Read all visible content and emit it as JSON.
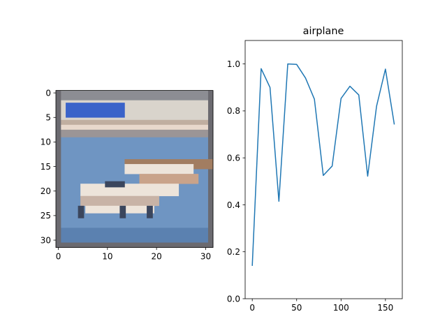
{
  "figure": {
    "background": "#ffffff"
  },
  "image_panel": {
    "title": "",
    "x_ticks": [
      "0",
      "10",
      "20",
      "30"
    ],
    "y_ticks": [
      "0",
      "5",
      "10",
      "15",
      "20",
      "25",
      "30"
    ],
    "xlim": [
      -0.5,
      31.5
    ],
    "ylim": [
      31.5,
      -0.5
    ],
    "content": "32x32 thumbnail of an airplane flying over a sky-blue background with a white-and-blue strip at the top",
    "colors": {
      "sky": "#6f95c2",
      "sky_dark": "#5b81b0",
      "strip_light": "#d9d4cc",
      "strip_blue": "#3a63c9",
      "plane_light": "#ede4da",
      "plane_brown": "#a27d61",
      "plane_dark": "#3b465d",
      "border_dark": "#6b6a70"
    }
  },
  "chart_data": {
    "type": "line",
    "title": "airplane",
    "xlabel": "",
    "ylabel": "",
    "xlim": [
      -8,
      169
    ],
    "ylim": [
      0.0,
      1.1
    ],
    "x_ticks": [
      "0",
      "50",
      "100",
      "150"
    ],
    "y_ticks": [
      "0.0",
      "0.2",
      "0.4",
      "0.6",
      "0.8",
      "1.0"
    ],
    "grid": false,
    "legend": "none",
    "series": [
      {
        "color": "#1f77b4",
        "x": [
          0,
          10,
          20,
          30,
          40,
          50,
          60,
          70,
          80,
          90,
          100,
          110,
          120,
          130,
          140,
          150,
          160
        ],
        "y": [
          0.14,
          0.98,
          0.9,
          0.415,
          1.0,
          0.998,
          0.94,
          0.85,
          0.525,
          0.565,
          0.853,
          0.905,
          0.868,
          0.522,
          0.82,
          0.978,
          0.742
        ]
      }
    ]
  }
}
